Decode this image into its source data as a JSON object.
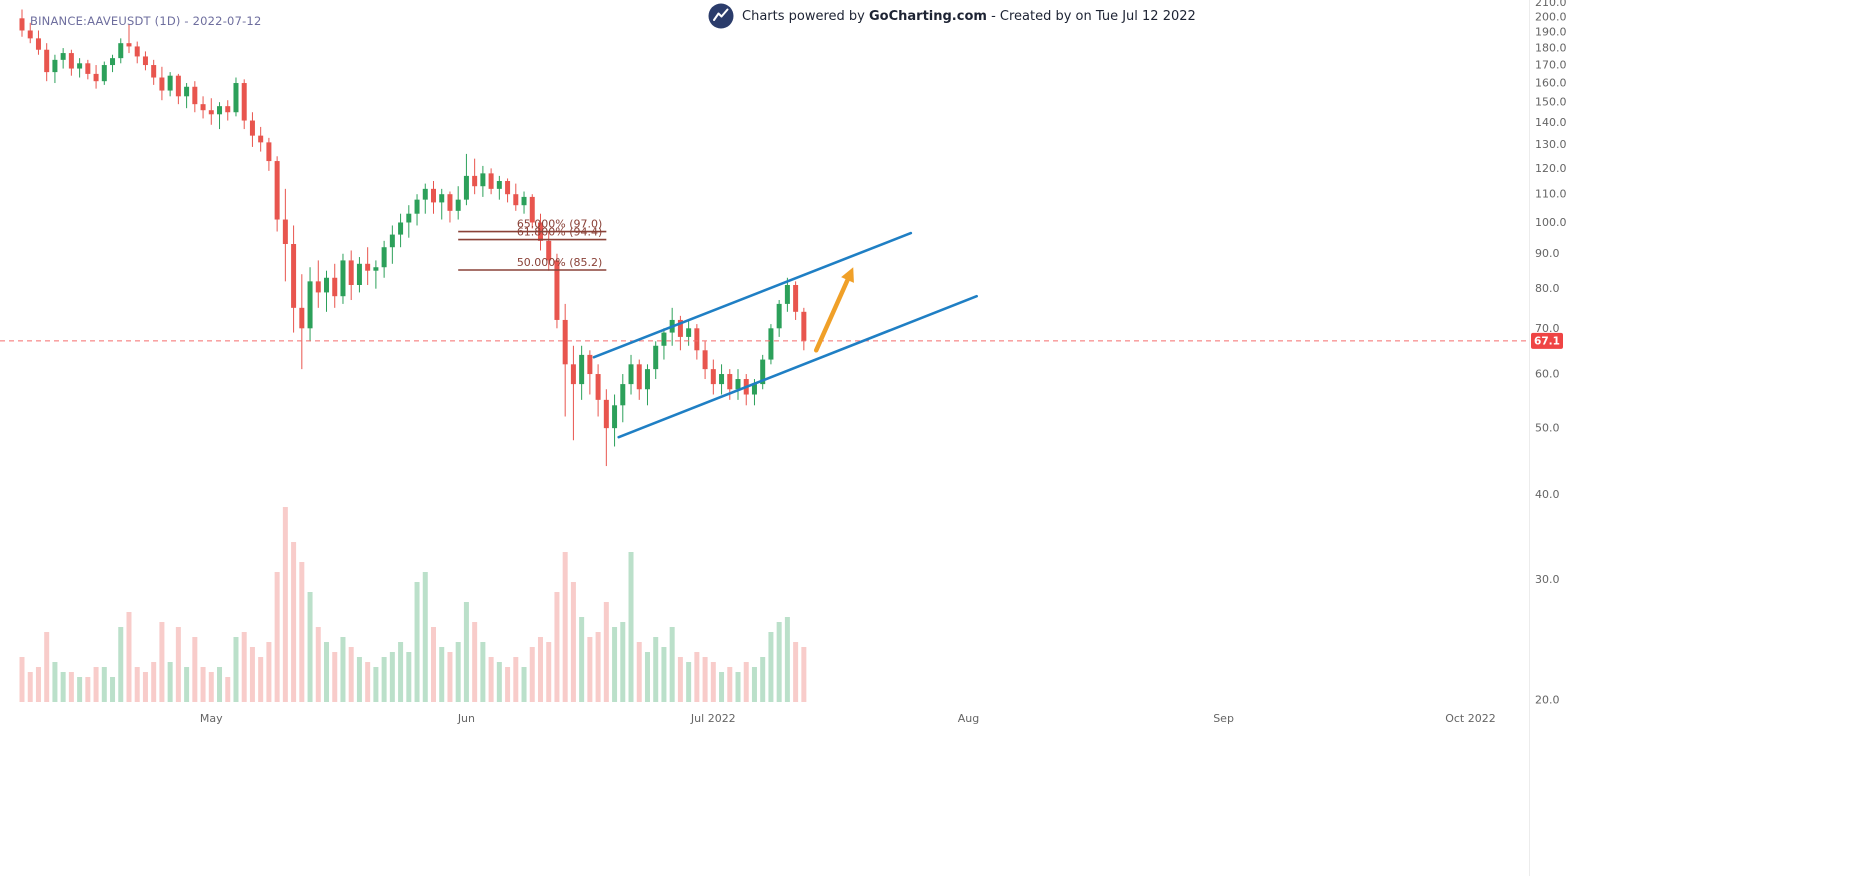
{
  "legend": {
    "symbol_text": "BINANCE:AAVEUSDT (1D) - 2022-07-12"
  },
  "header": {
    "prefix": "Charts powered by ",
    "brand": "GoCharting.com",
    "suffix": " - Created by  on Tue Jul 12 2022"
  },
  "chart_data": {
    "type": "candlestick",
    "symbol": "BINANCE:AAVEUSDT",
    "interval": "1D",
    "title": "BINANCE:AAVEUSDT (1D) - 2022-07-12",
    "y_axis": {
      "scale": "log",
      "min": 20,
      "max": 212,
      "grid": false
    },
    "y_ticks": [
      210,
      200,
      190,
      180,
      170,
      160,
      150,
      140,
      130,
      120,
      110,
      100,
      90,
      80,
      70,
      60,
      50,
      40,
      30,
      20
    ],
    "x_ticks": [
      {
        "label": "May",
        "index": 23
      },
      {
        "label": "Jun",
        "index": 54
      },
      {
        "label": "Jul 2022",
        "index": 84
      },
      {
        "label": "Aug",
        "index": 115
      },
      {
        "label": "Sep",
        "index": 146
      },
      {
        "label": "Oct 2022",
        "index": 176
      }
    ],
    "last_price": 67.1,
    "last_price_label": "67.1",
    "candles_format": [
      "open",
      "high",
      "low",
      "close",
      "volume"
    ],
    "candles": [
      [
        199,
        205,
        187,
        191,
        0.9
      ],
      [
        191,
        196,
        183,
        186,
        0.6
      ],
      [
        186,
        191,
        176,
        179,
        0.7
      ],
      [
        179,
        183,
        161,
        166,
        1.4
      ],
      [
        166,
        176,
        160,
        173,
        0.8
      ],
      [
        173,
        180,
        168,
        177,
        0.6
      ],
      [
        177,
        179,
        164,
        168,
        0.6
      ],
      [
        168,
        174,
        163,
        171,
        0.5
      ],
      [
        171,
        173,
        162,
        165,
        0.5
      ],
      [
        165,
        170,
        157,
        161,
        0.7
      ],
      [
        161,
        172,
        159,
        170,
        0.7
      ],
      [
        170,
        176,
        166,
        174,
        0.5
      ],
      [
        174,
        186,
        171,
        183,
        1.5
      ],
      [
        183,
        195,
        177,
        181,
        1.8
      ],
      [
        181,
        184,
        171,
        175,
        0.7
      ],
      [
        175,
        178,
        167,
        170,
        0.6
      ],
      [
        170,
        173,
        159,
        163,
        0.8
      ],
      [
        163,
        169,
        151,
        156,
        1.6
      ],
      [
        156,
        166,
        153,
        164,
        0.8
      ],
      [
        164,
        165,
        149,
        153,
        1.5
      ],
      [
        153,
        160,
        147,
        158,
        0.7
      ],
      [
        158,
        161,
        145,
        149,
        1.3
      ],
      [
        149,
        153,
        142,
        146,
        0.7
      ],
      [
        146,
        152,
        139,
        144,
        0.6
      ],
      [
        144,
        150,
        137,
        148,
        0.7
      ],
      [
        148,
        151,
        141,
        145,
        0.5
      ],
      [
        145,
        163,
        143,
        160,
        1.3
      ],
      [
        160,
        162,
        137,
        141,
        1.4
      ],
      [
        141,
        145,
        129,
        134,
        1.1
      ],
      [
        134,
        138,
        127,
        131,
        0.9
      ],
      [
        131,
        133,
        119,
        123,
        1.2
      ],
      [
        123,
        125,
        97,
        101,
        2.6
      ],
      [
        101,
        112,
        82,
        93,
        3.9
      ],
      [
        93,
        99,
        69,
        75,
        3.2
      ],
      [
        75,
        84,
        61,
        70,
        2.8
      ],
      [
        70,
        86,
        67,
        82,
        2.2
      ],
      [
        82,
        88,
        75,
        79,
        1.5
      ],
      [
        79,
        85,
        74,
        83,
        1.2
      ],
      [
        83,
        87,
        75,
        78,
        1.0
      ],
      [
        78,
        90,
        76,
        88,
        1.3
      ],
      [
        88,
        91,
        77,
        81,
        1.1
      ],
      [
        81,
        89,
        79,
        87,
        0.9
      ],
      [
        87,
        92,
        81,
        85,
        0.8
      ],
      [
        85,
        88,
        80,
        86,
        0.7
      ],
      [
        86,
        94,
        83,
        92,
        0.9
      ],
      [
        92,
        99,
        87,
        96,
        1.0
      ],
      [
        96,
        103,
        92,
        100,
        1.2
      ],
      [
        100,
        106,
        95,
        103,
        1.0
      ],
      [
        103,
        110,
        99,
        108,
        2.4
      ],
      [
        108,
        114,
        103,
        112,
        2.6
      ],
      [
        112,
        115,
        103,
        107,
        1.5
      ],
      [
        107,
        112,
        101,
        110,
        1.1
      ],
      [
        110,
        111,
        100,
        104,
        1.0
      ],
      [
        104,
        113,
        101,
        108,
        1.2
      ],
      [
        108,
        126,
        106,
        117,
        2.0
      ],
      [
        117,
        124,
        110,
        113,
        1.6
      ],
      [
        113,
        121,
        109,
        118,
        1.2
      ],
      [
        118,
        120,
        110,
        112,
        0.9
      ],
      [
        112,
        117,
        108,
        115,
        0.8
      ],
      [
        115,
        116,
        107,
        110,
        0.7
      ],
      [
        110,
        114,
        104,
        106,
        0.9
      ],
      [
        106,
        111,
        103,
        109,
        0.7
      ],
      [
        109,
        110,
        98,
        100,
        1.1
      ],
      [
        100,
        103,
        91,
        94,
        1.3
      ],
      [
        94,
        97,
        85,
        88,
        1.2
      ],
      [
        88,
        90,
        70,
        72,
        2.2
      ],
      [
        72,
        76,
        52,
        62,
        3.0
      ],
      [
        62,
        66,
        48,
        58,
        2.4
      ],
      [
        58,
        66,
        55,
        64,
        1.7
      ],
      [
        64,
        65,
        56,
        60,
        1.3
      ],
      [
        60,
        62,
        52,
        55,
        1.4
      ],
      [
        55,
        57,
        44,
        50,
        2.0
      ],
      [
        50,
        56,
        47,
        54,
        1.5
      ],
      [
        54,
        60,
        51,
        58,
        1.6
      ],
      [
        58,
        64,
        56,
        62,
        3.0
      ],
      [
        62,
        63,
        55,
        57,
        1.2
      ],
      [
        57,
        62,
        54,
        61,
        1.0
      ],
      [
        61,
        67,
        59,
        66,
        1.3
      ],
      [
        66,
        70,
        63,
        69,
        1.1
      ],
      [
        69,
        75,
        66,
        72,
        1.5
      ],
      [
        72,
        73,
        65,
        68,
        0.9
      ],
      [
        68,
        72,
        66,
        70,
        0.8
      ],
      [
        70,
        71,
        63,
        65,
        1.0
      ],
      [
        65,
        67,
        59,
        61,
        0.9
      ],
      [
        61,
        63,
        56,
        58,
        0.8
      ],
      [
        58,
        62,
        56,
        60,
        0.6
      ],
      [
        60,
        61,
        55,
        57,
        0.7
      ],
      [
        57,
        61,
        55,
        59,
        0.6
      ],
      [
        59,
        60,
        54,
        56,
        0.8
      ],
      [
        56,
        59,
        54,
        58,
        0.7
      ],
      [
        58,
        64,
        57,
        63,
        0.9
      ],
      [
        63,
        71,
        62,
        70,
        1.4
      ],
      [
        70,
        77,
        68,
        76,
        1.6
      ],
      [
        76,
        83,
        74,
        81,
        1.7
      ],
      [
        81,
        82,
        72,
        74,
        1.2
      ],
      [
        74,
        75,
        65,
        67.1,
        1.1
      ]
    ],
    "fib": {
      "from_index": 53,
      "to_index": 71,
      "levels": [
        {
          "label": "65.000% (97.0)",
          "price": 97.0
        },
        {
          "label": "61.800% (94.4)",
          "price": 94.4
        },
        {
          "label": "50.000% (85.2)",
          "price": 85.2
        }
      ]
    },
    "trendlines": [
      {
        "name": "channel-upper-trendline",
        "from": {
          "index": 69.5,
          "price": 63.5
        },
        "to": {
          "index": 108,
          "price": 96.5
        }
      },
      {
        "name": "channel-lower-trendline",
        "from": {
          "index": 72.5,
          "price": 48.5
        },
        "to": {
          "index": 116,
          "price": 78
        }
      }
    ],
    "arrow": {
      "from": {
        "index": 96.5,
        "price": 65
      },
      "to": {
        "index": 101,
        "price": 86
      }
    },
    "colors": {
      "up": "#2ca05a",
      "down": "#e8554e",
      "volume_up": "rgba(44,160,90,0.32)",
      "volume_down": "rgba(232,85,78,0.30)",
      "trendline": "#1f7fc4",
      "fib": "#8a4238",
      "arrow": "#f0a028",
      "last_price_line": "#f56c6c",
      "badge": "#ef4444",
      "axis_text": "#656565"
    }
  }
}
